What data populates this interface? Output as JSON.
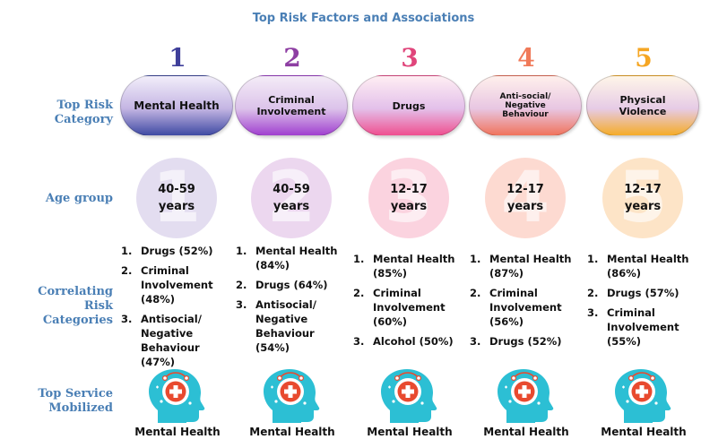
{
  "title": "Top Risk Factors and Associations",
  "row_labels": {
    "category": "Top Risk Category",
    "age": "Age group",
    "correlating": "Correlating Risk Categories",
    "service": "Top Service Mobilized"
  },
  "columns": [
    {
      "rank": "1",
      "rank_color": "#3f3f9a",
      "category": "Mental Health",
      "pill_colors": [
        "#f2eefa",
        "#c4b5e3",
        "#3f4aa3"
      ],
      "age": "40-59 years",
      "circle_color": "#e3ddf0",
      "correlating": [
        {
          "n": "1.",
          "text": "Drugs (52%)"
        },
        {
          "n": "2.",
          "text": "Criminal Involvement (48%)"
        },
        {
          "n": "3.",
          "text": "Antisocial/ Negative Behaviour (47%)"
        }
      ],
      "service": "Mental Health"
    },
    {
      "rank": "2",
      "rank_color": "#8e3fa3",
      "category": "Criminal Involvement",
      "pill_colors": [
        "#f4ecf7",
        "#dcc3ea",
        "#a03fcf"
      ],
      "age": "40-59 years",
      "circle_color": "#ecd7ef",
      "correlating": [
        {
          "n": "1.",
          "text": "Mental Health (84%)"
        },
        {
          "n": "2.",
          "text": "Drugs (64%)"
        },
        {
          "n": "3.",
          "text": "Antisocial/ Negative Behaviour (54%)"
        }
      ],
      "service": "Mental Health"
    },
    {
      "rank": "3",
      "rank_color": "#e0457b",
      "category": "Drugs",
      "pill_colors": [
        "#ffeef3",
        "#e3c0ea",
        "#ef4f8f"
      ],
      "age": "12-17 years",
      "circle_color": "#fbd3df",
      "correlating": [
        {
          "n": "1.",
          "text": "Mental Health (85%)"
        },
        {
          "n": "2.",
          "text": "Criminal Involvement (60%)"
        },
        {
          "n": "3.",
          "text": "Alcohol (50%)"
        }
      ],
      "service": "Mental Health"
    },
    {
      "rank": "4",
      "rank_color": "#f07a59",
      "category": "Anti-social/ Negative Behaviour",
      "pill_colors": [
        "#fff0ec",
        "#e8c6e2",
        "#f0735c"
      ],
      "age": "12-17 years",
      "circle_color": "#fddad1",
      "correlating": [
        {
          "n": "1.",
          "text": "Mental Health (87%)"
        },
        {
          "n": "2.",
          "text": "Criminal Involvement (56%)"
        },
        {
          "n": "3.",
          "text": "Drugs (52%)"
        }
      ],
      "service": "Mental Health"
    },
    {
      "rank": "5",
      "rank_color": "#f5a623",
      "category": "Physical Violence",
      "pill_colors": [
        "#fff6e8",
        "#e6cbe6",
        "#f5ac28"
      ],
      "age": "12-17 years",
      "circle_color": "#fde4c7",
      "correlating": [
        {
          "n": "1.",
          "text": "Mental Health (86%)"
        },
        {
          "n": "2.",
          "text": "Drugs (57%)"
        },
        {
          "n": "3.",
          "text": "Criminal Involvement (55%)"
        }
      ],
      "service": "Mental Health"
    }
  ],
  "icon": {
    "head_color": "#2cbfd4",
    "accent_color": "#e84a2f",
    "name": "head-medical-cross-icon"
  }
}
